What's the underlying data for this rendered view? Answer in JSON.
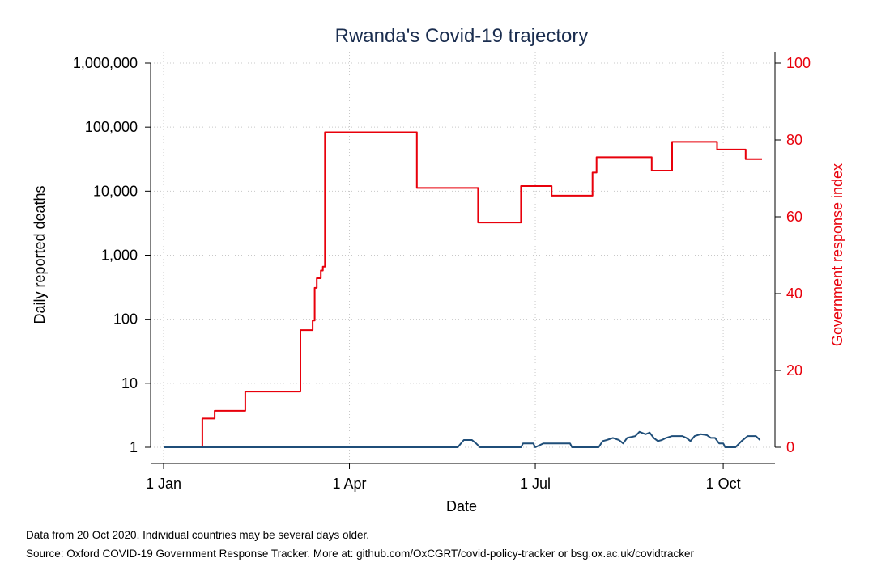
{
  "chart_data": {
    "type": "line",
    "title": "Rwanda's Covid-19 trajectory",
    "xlabel": "Date",
    "ylabel_left": "Daily reported deaths",
    "ylabel_right": "Government response index",
    "x_range": [
      "2020-01-01",
      "2020-10-20"
    ],
    "x_ticks": [
      {
        "date": "2020-01-01",
        "label": "1 Jan"
      },
      {
        "date": "2020-04-01",
        "label": "1 Apr"
      },
      {
        "date": "2020-07-01",
        "label": "1 Jul"
      },
      {
        "date": "2020-10-01",
        "label": "1 Oct"
      }
    ],
    "y_left": {
      "scale": "log",
      "range": [
        1,
        1000000
      ],
      "ticks": [
        {
          "value": 1,
          "label": "1"
        },
        {
          "value": 10,
          "label": "10"
        },
        {
          "value": 100,
          "label": "100"
        },
        {
          "value": 1000,
          "label": "1,000"
        },
        {
          "value": 10000,
          "label": "10,000"
        },
        {
          "value": 100000,
          "label": "100,000"
        },
        {
          "value": 1000000,
          "label": "1,000,000"
        }
      ]
    },
    "y_right": {
      "scale": "linear",
      "range": [
        0,
        100
      ],
      "ticks": [
        {
          "value": 0,
          "label": "0"
        },
        {
          "value": 20,
          "label": "20"
        },
        {
          "value": 40,
          "label": "40"
        },
        {
          "value": 60,
          "label": "60"
        },
        {
          "value": 80,
          "label": "80"
        },
        {
          "value": 100,
          "label": "100"
        }
      ]
    },
    "grid": true,
    "series": [
      {
        "axis": "right",
        "color": "#e8000b",
        "step": true,
        "points": [
          [
            "2020-01-01",
            0
          ],
          [
            "2020-01-20",
            7.5
          ],
          [
            "2020-01-26",
            9.5
          ],
          [
            "2020-02-10",
            14.5
          ],
          [
            "2020-03-08",
            30.5
          ],
          [
            "2020-03-14",
            33
          ],
          [
            "2020-03-15",
            41.5
          ],
          [
            "2020-03-16",
            44
          ],
          [
            "2020-03-18",
            46
          ],
          [
            "2020-03-19",
            47
          ],
          [
            "2020-03-20",
            82
          ],
          [
            "2020-05-04",
            67.5
          ],
          [
            "2020-06-03",
            58.5
          ],
          [
            "2020-06-24",
            68
          ],
          [
            "2020-07-09",
            65.5
          ],
          [
            "2020-07-29",
            71.5
          ],
          [
            "2020-07-31",
            75.5
          ],
          [
            "2020-08-27",
            72
          ],
          [
            "2020-09-06",
            79.5
          ],
          [
            "2020-09-28",
            77.5
          ],
          [
            "2020-10-12",
            75
          ],
          [
            "2020-10-20",
            75
          ]
        ]
      },
      {
        "axis": "left",
        "color": "#1f4e79",
        "points": [
          [
            "2020-01-01",
            1
          ],
          [
            "2020-05-24",
            1
          ],
          [
            "2020-05-27",
            1.3
          ],
          [
            "2020-05-31",
            1.3
          ],
          [
            "2020-06-02",
            1.15
          ],
          [
            "2020-06-04",
            1
          ],
          [
            "2020-06-24",
            1
          ],
          [
            "2020-06-25",
            1.15
          ],
          [
            "2020-06-30",
            1.15
          ],
          [
            "2020-07-01",
            1
          ],
          [
            "2020-07-05",
            1.15
          ],
          [
            "2020-07-18",
            1.15
          ],
          [
            "2020-07-19",
            1
          ],
          [
            "2020-08-01",
            1
          ],
          [
            "2020-08-03",
            1.25
          ],
          [
            "2020-08-05",
            1.3
          ],
          [
            "2020-08-08",
            1.4
          ],
          [
            "2020-08-11",
            1.3
          ],
          [
            "2020-08-13",
            1.15
          ],
          [
            "2020-08-15",
            1.4
          ],
          [
            "2020-08-19",
            1.5
          ],
          [
            "2020-08-21",
            1.75
          ],
          [
            "2020-08-24",
            1.6
          ],
          [
            "2020-08-26",
            1.7
          ],
          [
            "2020-08-28",
            1.4
          ],
          [
            "2020-08-30",
            1.25
          ],
          [
            "2020-09-01",
            1.3
          ],
          [
            "2020-09-03",
            1.4
          ],
          [
            "2020-09-06",
            1.5
          ],
          [
            "2020-09-11",
            1.5
          ],
          [
            "2020-09-13",
            1.4
          ],
          [
            "2020-09-15",
            1.25
          ],
          [
            "2020-09-17",
            1.5
          ],
          [
            "2020-09-20",
            1.6
          ],
          [
            "2020-09-23",
            1.55
          ],
          [
            "2020-09-25",
            1.4
          ],
          [
            "2020-09-27",
            1.4
          ],
          [
            "2020-09-29",
            1.15
          ],
          [
            "2020-10-01",
            1.15
          ],
          [
            "2020-10-02",
            1
          ],
          [
            "2020-10-07",
            1
          ],
          [
            "2020-10-10",
            1.25
          ],
          [
            "2020-10-13",
            1.5
          ],
          [
            "2020-10-17",
            1.5
          ],
          [
            "2020-10-19",
            1.3
          ]
        ]
      }
    ]
  },
  "notes": {
    "line1": "Data from 20 Oct 2020. Individual countries may be several days older.",
    "line2": "Source: Oxford COVID-19 Government Response Tracker. More at: github.com/OxCGRT/covid-policy-tracker or bsg.ox.ac.uk/covidtracker"
  }
}
